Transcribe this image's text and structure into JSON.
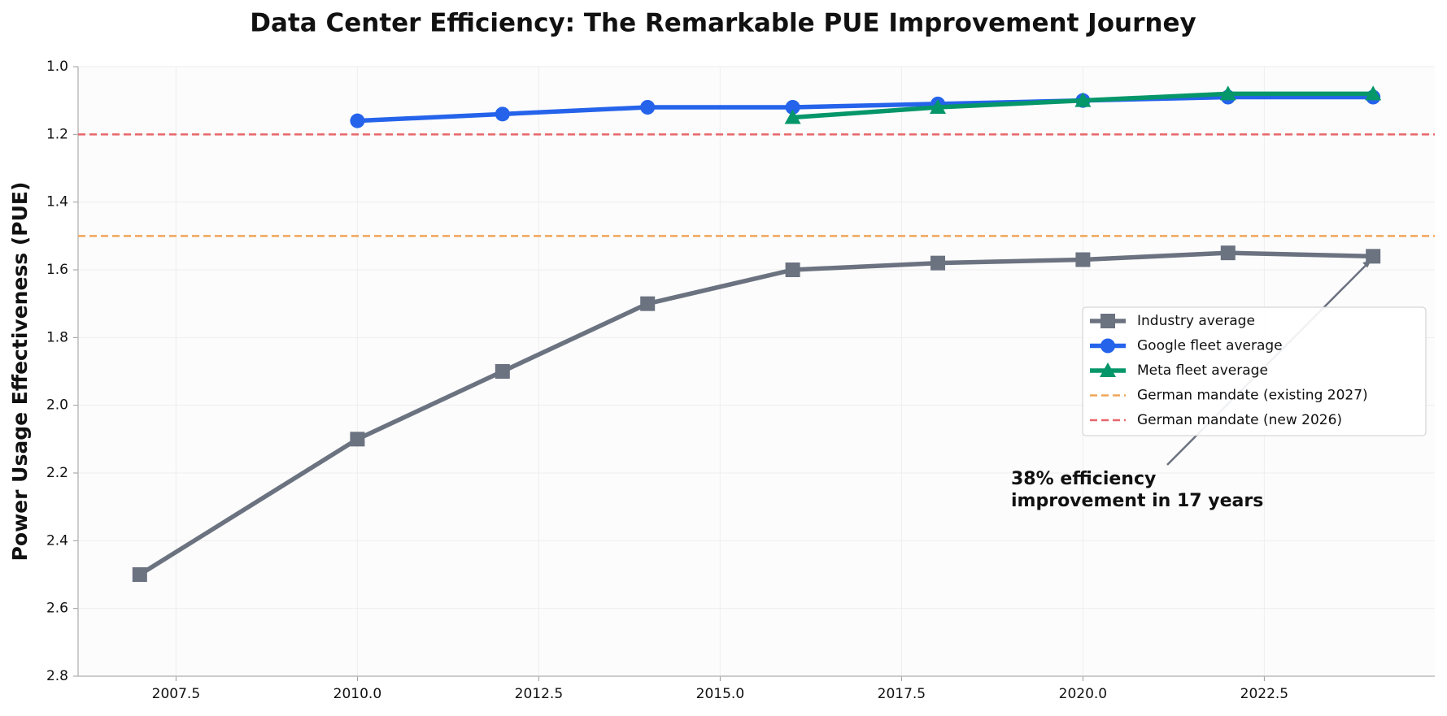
{
  "chart_data": {
    "type": "line",
    "title": "Data Center Efficiency: The Remarkable PUE Improvement Journey",
    "y_label": "Power Usage Effectiveness (PUE)",
    "x": [
      2007,
      2010,
      2012,
      2014,
      2016,
      2018,
      2020,
      2022,
      2024
    ],
    "series": [
      {
        "name": "Industry average",
        "color": "#6b7280",
        "marker": "square",
        "values": [
          2.5,
          2.1,
          1.9,
          1.7,
          1.6,
          1.58,
          1.57,
          1.55,
          1.56
        ]
      },
      {
        "name": "Google fleet average",
        "color": "#2563eb",
        "marker": "circle",
        "values": [
          null,
          1.16,
          1.14,
          1.12,
          1.12,
          1.11,
          1.1,
          1.09,
          1.09
        ]
      },
      {
        "name": "Meta fleet average",
        "color": "#059669",
        "marker": "triangle",
        "values": [
          null,
          null,
          null,
          null,
          1.15,
          1.12,
          1.1,
          1.08,
          1.08
        ]
      }
    ],
    "reference_lines": [
      {
        "name": "German mandate (existing 2027)",
        "value": 1.5,
        "color": "#f0a55a"
      },
      {
        "name": "German mandate (new 2026)",
        "value": 1.2,
        "color": "#e8676b"
      }
    ],
    "annotation": [
      "38% efficiency",
      "improvement in 17 years"
    ],
    "annotation_color": "#6b7280",
    "xlim": [
      2006.15,
      2024.85
    ],
    "xticks": [
      2007.5,
      {
        "value": 2010,
        "label": "2010.0"
      },
      2012.5,
      {
        "value": 2015,
        "label": "2015.0"
      },
      2017.5,
      {
        "value": 2020,
        "label": "2020.0"
      },
      2022.5
    ],
    "ylim": [
      2.8,
      1.0
    ],
    "yticks": [
      {
        "value": 1.0,
        "label": "1.0"
      },
      1.2,
      1.4,
      1.6,
      1.8,
      {
        "value": 2.0,
        "label": "2.0"
      },
      2.2,
      2.4,
      2.6,
      2.8
    ],
    "grid": true,
    "legend": "right"
  }
}
